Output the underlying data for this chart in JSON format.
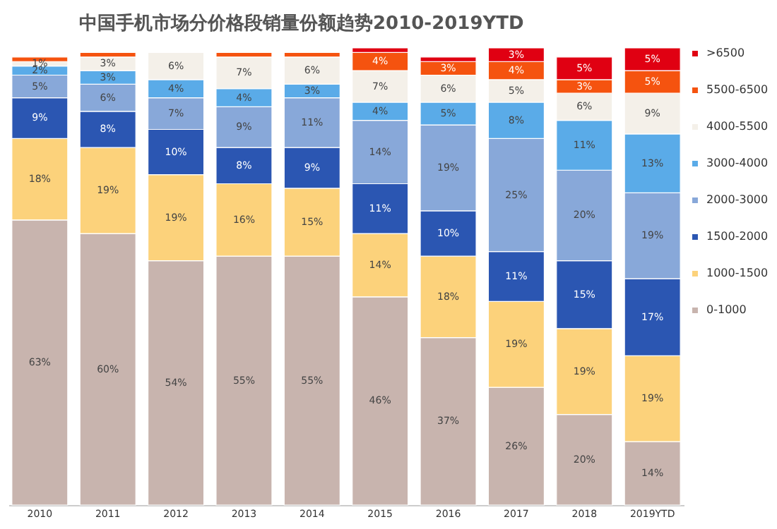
{
  "chart_data": {
    "type": "bar",
    "stacked": true,
    "title": "中国手机市场分价格段销量份额趋势2010-2019YTD",
    "categories": [
      "2010",
      "2011",
      "2012",
      "2013",
      "2014",
      "2015",
      "2016",
      "2017",
      "2018",
      "2019YTD"
    ],
    "series": [
      {
        "name": "0-1000",
        "color": "#c8b4ae",
        "values": [
          63,
          60,
          54,
          55,
          55,
          46,
          37,
          26,
          20,
          14
        ],
        "value_labels": [
          "63%",
          "60%",
          "54%",
          "55%",
          "55%",
          "46%",
          "37%",
          "26%",
          "20%",
          "14%"
        ]
      },
      {
        "name": "1000-1500",
        "color": "#fcd27b",
        "values": [
          18,
          19,
          19,
          16,
          15,
          14,
          18,
          19,
          19,
          19
        ],
        "value_labels": [
          "18%",
          "19%",
          "19%",
          "16%",
          "15%",
          "14%",
          "18%",
          "19%",
          "19%",
          "19%"
        ]
      },
      {
        "name": "1500-2000",
        "color": "#2b56b2",
        "values": [
          9,
          8,
          10,
          8,
          9,
          11,
          10,
          11,
          15,
          17
        ],
        "value_labels": [
          "9%",
          "8%",
          "10%",
          "8%",
          "9%",
          "11%",
          "10%",
          "11%",
          "15%",
          "17%"
        ]
      },
      {
        "name": "2000-3000",
        "color": "#88a8d9",
        "values": [
          5,
          6,
          7,
          9,
          11,
          14,
          19,
          25,
          20,
          19
        ],
        "value_labels": [
          "5%",
          "6%",
          "7%",
          "9%",
          "11%",
          "14%",
          "19%",
          "25%",
          "20%",
          "19%"
        ]
      },
      {
        "name": "3000-4000",
        "color": "#5aabe8",
        "values": [
          2,
          3,
          4,
          4,
          3,
          4,
          5,
          8,
          11,
          13
        ],
        "value_labels": [
          "2%",
          "3%",
          "4%",
          "4%",
          "3%",
          "4%",
          "5%",
          "8%",
          "11%",
          "13%"
        ]
      },
      {
        "name": "4000-5500",
        "color": "#f4f0e9",
        "values": [
          1,
          3,
          6,
          7,
          6,
          7,
          6,
          5,
          6,
          9
        ],
        "value_labels": [
          "1%",
          "3%",
          "6%",
          "7%",
          "6%",
          "7%",
          "6%",
          "5%",
          "6%",
          "9%"
        ]
      },
      {
        "name": "5500-6500",
        "color": "#f5530f",
        "values": [
          1,
          1,
          null,
          1,
          1,
          4,
          3,
          4,
          3,
          5
        ],
        "value_labels": [
          null,
          null,
          null,
          null,
          null,
          "4%",
          "3%",
          "4%",
          "3%",
          "5%"
        ]
      },
      {
        "name": ">6500",
        "color": "#e00012",
        "values": [
          null,
          null,
          null,
          null,
          null,
          1,
          1,
          3,
          5,
          5
        ],
        "value_labels": [
          null,
          null,
          null,
          null,
          null,
          null,
          null,
          "3%",
          "5%",
          "5%"
        ]
      }
    ],
    "legend": "right",
    "tick_labels": "x"
  }
}
